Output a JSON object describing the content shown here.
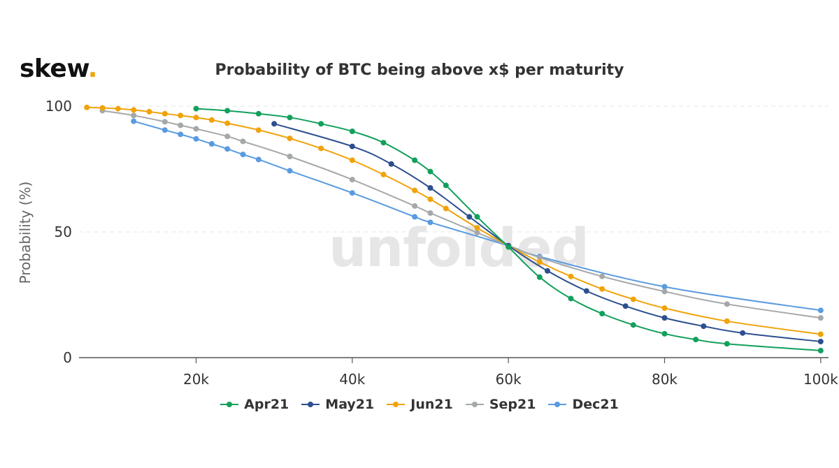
{
  "logo": {
    "text": "skew",
    "dot": "."
  },
  "watermark": "unfolded",
  "chart_data": {
    "type": "line",
    "title": "Probability of BTC being above x$ per maturity",
    "ylabel": "Probability (%)",
    "xlabel": "",
    "xlim": [
      5000,
      101000
    ],
    "ylim": [
      0,
      100
    ],
    "xticks": [
      20000,
      40000,
      60000,
      80000,
      100000
    ],
    "xtick_labels": [
      "20k",
      "40k",
      "60k",
      "80k",
      "100k"
    ],
    "yticks": [
      0,
      50,
      100
    ],
    "ytick_labels": [
      "0",
      "50",
      "100"
    ],
    "grid": "horizontal-dashed",
    "legend": "bottom-center",
    "series": [
      {
        "name": "Apr21",
        "color": "#12a05c",
        "x": [
          20000,
          24000,
          28000,
          32000,
          36000,
          40000,
          44000,
          48000,
          50000,
          52000,
          56000,
          60000,
          64000,
          68000,
          72000,
          76000,
          80000,
          84000,
          88000,
          100000
        ],
        "y": [
          99,
          98.2,
          97,
          95.5,
          93,
          90,
          85.5,
          78.5,
          74,
          68.5,
          56,
          44,
          32,
          23.5,
          17.5,
          13,
          9.5,
          7.2,
          5.5,
          2.8
        ]
      },
      {
        "name": "May21",
        "color": "#2c4f8f",
        "x": [
          30000,
          40000,
          45000,
          50000,
          55000,
          60000,
          65000,
          70000,
          75000,
          80000,
          85000,
          90000,
          100000
        ],
        "y": [
          93,
          84,
          77,
          67.5,
          56,
          44.5,
          34.5,
          26.5,
          20.5,
          15.8,
          12.5,
          9.8,
          6.4
        ]
      },
      {
        "name": "Jun21",
        "color": "#f0a30a",
        "x": [
          6000,
          8000,
          10000,
          12000,
          14000,
          16000,
          18000,
          20000,
          22000,
          24000,
          28000,
          32000,
          36000,
          40000,
          44000,
          48000,
          50000,
          52000,
          56000,
          60000,
          64000,
          68000,
          72000,
          76000,
          80000,
          88000,
          100000
        ],
        "y": [
          99.5,
          99.3,
          99,
          98.5,
          97.8,
          97,
          96.3,
          95.5,
          94.5,
          93.2,
          90.5,
          87.2,
          83.2,
          78.5,
          72.8,
          66.5,
          63,
          59.3,
          51.6,
          44.5,
          38,
          32.3,
          27.3,
          23.2,
          19.7,
          14.5,
          9.3
        ]
      },
      {
        "name": "Sep21",
        "color": "#a5a8aa",
        "x": [
          8000,
          12000,
          16000,
          18000,
          20000,
          24000,
          26000,
          32000,
          40000,
          48000,
          50000,
          56000,
          60000,
          64000,
          72000,
          80000,
          88000,
          100000
        ],
        "y": [
          98.2,
          96.3,
          93.8,
          92.4,
          91,
          88,
          86,
          80,
          70.8,
          60.3,
          57.5,
          49.7,
          44.6,
          39.8,
          32.3,
          26.3,
          21.3,
          15.8
        ]
      },
      {
        "name": "Dec21",
        "color": "#5a9be0",
        "x": [
          12000,
          16000,
          18000,
          20000,
          22000,
          24000,
          26000,
          28000,
          32000,
          40000,
          48000,
          50000,
          60000,
          64000,
          80000,
          100000
        ],
        "y": [
          94,
          90.5,
          88.8,
          87,
          85,
          83,
          80.8,
          78.8,
          74.3,
          65.5,
          56,
          53.8,
          44.5,
          40.2,
          28.2,
          18.8
        ]
      }
    ]
  }
}
